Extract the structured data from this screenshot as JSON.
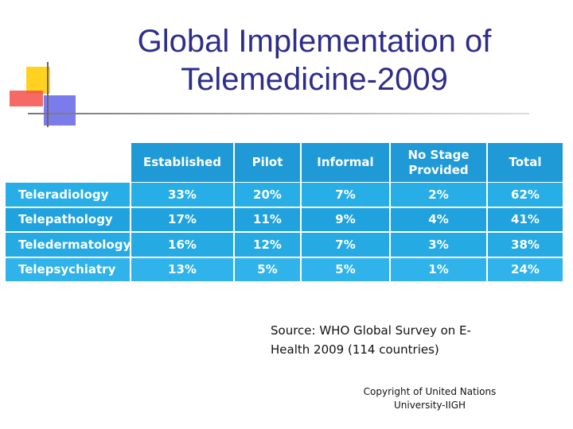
{
  "title": {
    "lines": [
      "Global Implementation of",
      "Telemedicine-2009"
    ]
  },
  "table": {
    "columns": [
      "Established",
      "Pilot",
      "Informal",
      "No Stage Provided",
      "Total"
    ],
    "rows": [
      {
        "label": "Teleradiology",
        "cells": [
          "33%",
          "20%",
          "7%",
          "2%",
          "62%"
        ]
      },
      {
        "label": "Telepathology",
        "cells": [
          "17%",
          "11%",
          "9%",
          "4%",
          "41%"
        ]
      },
      {
        "label": "Teledermatology",
        "cells": [
          "16%",
          "12%",
          "7%",
          "3%",
          "38%"
        ]
      },
      {
        "label": "Telepsychiatry",
        "cells": [
          "13%",
          "5%",
          "5%",
          "1%",
          "24%"
        ]
      }
    ]
  },
  "source": {
    "lines": [
      "Source: WHO Global Survey on E-",
      "Health 2009 (114 countries)"
    ]
  },
  "copyright": {
    "lines": [
      "Copyright of United Nations",
      "University-IIGH"
    ]
  }
}
